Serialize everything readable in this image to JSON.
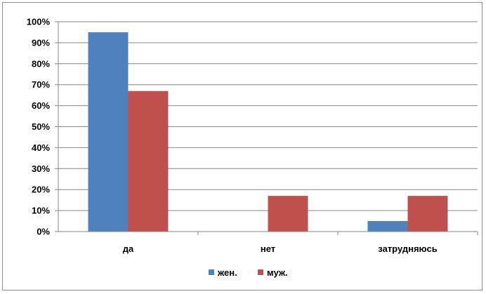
{
  "chart_data": {
    "type": "bar",
    "categories": [
      "да",
      "нет",
      "затрудняюсь"
    ],
    "series": [
      {
        "name": "жен.",
        "values": [
          95,
          0,
          5
        ],
        "color": "#4f81bd"
      },
      {
        "name": "муж.",
        "values": [
          67,
          17,
          17
        ],
        "color": "#c0504d"
      }
    ],
    "y_ticks": [
      "0%",
      "10%",
      "20%",
      "30%",
      "40%",
      "50%",
      "60%",
      "70%",
      "80%",
      "90%",
      "100%"
    ],
    "ylim": [
      0,
      100
    ],
    "grid": true,
    "legend": "bottom"
  }
}
